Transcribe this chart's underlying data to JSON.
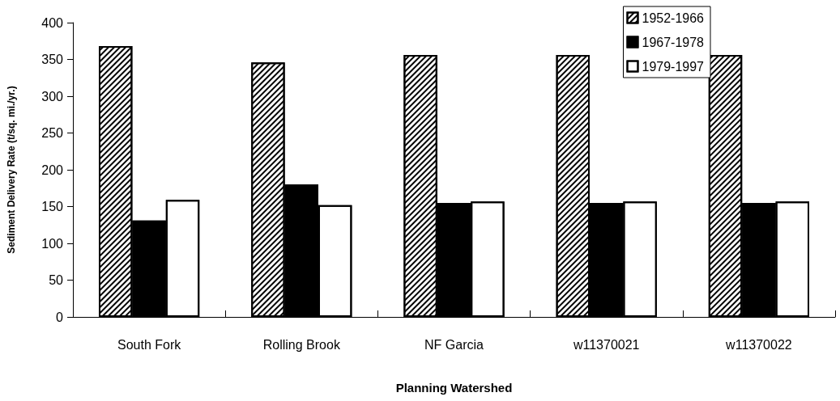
{
  "chart_data": {
    "type": "bar",
    "xlabel": "Planning Watershed",
    "ylabel": "Sediment Delivery Rate (t/sq. mi./yr.)",
    "categories": [
      "South Fork",
      "Rolling Brook",
      "NF Garcia",
      "w11370021",
      "w11370022"
    ],
    "series": [
      {
        "name": "1952-1966",
        "color": "#ffffff",
        "values": [
          368,
          346,
          356,
          356,
          356
        ]
      },
      {
        "name": "1967-1978",
        "color": "#000000",
        "values": [
          131,
          180,
          155,
          155,
          155
        ]
      },
      {
        "name": "1979-1997",
        "color": "#ffffff",
        "values": [
          159,
          152,
          157,
          157,
          157
        ]
      }
    ],
    "ylim": [
      0,
      400
    ],
    "yticks": [
      0,
      50,
      100,
      150,
      200,
      250,
      300,
      350,
      400
    ],
    "grid": false,
    "legend": "top right"
  }
}
